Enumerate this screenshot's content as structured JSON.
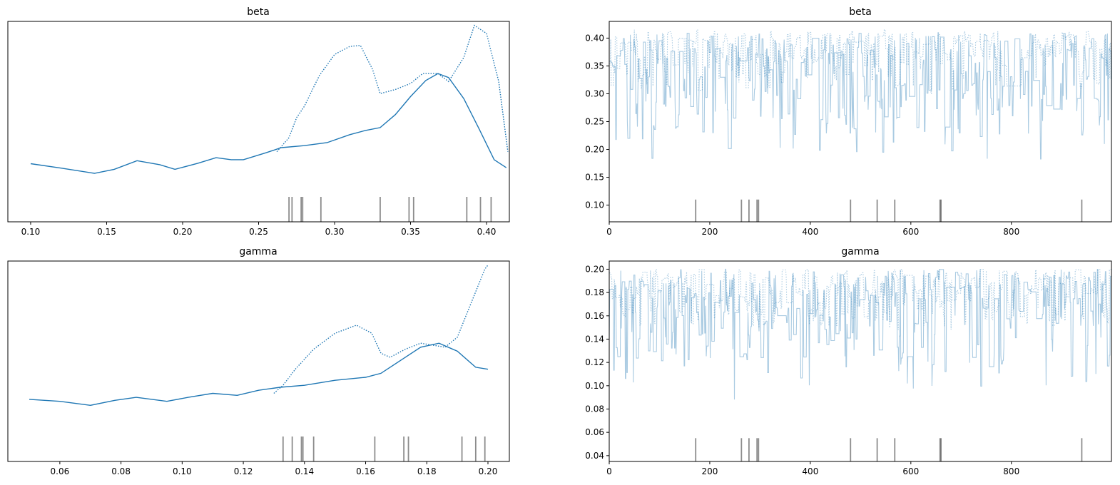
{
  "colors": {
    "series": "#1f77b4",
    "rug": "#000000",
    "axes": "#000000"
  },
  "chart_data": [
    {
      "type": "line",
      "title": "beta",
      "xlim": [
        0.085,
        0.415
      ],
      "ylim": [
        0,
        1.0
      ],
      "yticks_shown": false,
      "xticks": [
        0.1,
        0.15,
        0.2,
        0.25,
        0.3,
        0.35,
        0.4
      ],
      "xtick_labels": [
        "0.10",
        "0.15",
        "0.20",
        "0.25",
        "0.30",
        "0.35",
        "0.40"
      ],
      "series": [
        {
          "style": "solid",
          "x": [
            0.1,
            0.12,
            0.142,
            0.155,
            0.17,
            0.185,
            0.195,
            0.21,
            0.222,
            0.232,
            0.24,
            0.255,
            0.265,
            0.28,
            0.295,
            0.31,
            0.32,
            0.33,
            0.34,
            0.35,
            0.36,
            0.368,
            0.375,
            0.385,
            0.395,
            0.405,
            0.413
          ],
          "y": [
            0.29,
            0.268,
            0.242,
            0.262,
            0.305,
            0.285,
            0.262,
            0.292,
            0.32,
            0.31,
            0.31,
            0.345,
            0.37,
            0.38,
            0.395,
            0.435,
            0.455,
            0.47,
            0.535,
            0.625,
            0.705,
            0.74,
            0.72,
            0.615,
            0.465,
            0.31,
            0.27
          ]
        },
        {
          "style": "dotted",
          "x": [
            0.262,
            0.27,
            0.275,
            0.28,
            0.29,
            0.3,
            0.31,
            0.317,
            0.325,
            0.33,
            0.34,
            0.35,
            0.358,
            0.368,
            0.375,
            0.385,
            0.392,
            0.4,
            0.408,
            0.414
          ],
          "y": [
            0.35,
            0.42,
            0.52,
            0.575,
            0.73,
            0.835,
            0.875,
            0.88,
            0.76,
            0.64,
            0.66,
            0.69,
            0.74,
            0.74,
            0.7,
            0.82,
            0.98,
            0.94,
            0.7,
            0.35
          ]
        }
      ],
      "rug": [
        0.27,
        0.272,
        0.278,
        0.279,
        0.291,
        0.33,
        0.349,
        0.352,
        0.387,
        0.396,
        0.403
      ]
    },
    {
      "type": "line",
      "title": "beta",
      "xlim": [
        0,
        999
      ],
      "ylim": [
        0.07,
        0.43
      ],
      "xticks": [
        0,
        200,
        400,
        600,
        800
      ],
      "xtick_labels": [
        "0",
        "200",
        "400",
        "600",
        "800"
      ],
      "yticks": [
        0.1,
        0.15,
        0.2,
        0.25,
        0.3,
        0.35,
        0.4
      ],
      "ytick_labels": [
        "0.10",
        "0.15",
        "0.20",
        "0.25",
        "0.30",
        "0.35",
        "0.40"
      ],
      "series": [
        {
          "style": "solid",
          "n": 1000,
          "range": [
            0.1,
            0.41
          ]
        },
        {
          "style": "dotted",
          "n": 1000,
          "range": [
            0.26,
            0.415
          ]
        }
      ],
      "rug": [
        172,
        263,
        278,
        294,
        297,
        480,
        533,
        568,
        658,
        660,
        940
      ],
      "rug_level": 0.11
    },
    {
      "type": "line",
      "title": "gamma",
      "xlim": [
        0.043,
        0.207
      ],
      "ylim": [
        0,
        1.0
      ],
      "yticks_shown": false,
      "xticks": [
        0.06,
        0.08,
        0.1,
        0.12,
        0.14,
        0.16,
        0.18,
        0.2
      ],
      "xtick_labels": [
        "0.06",
        "0.08",
        "0.10",
        "0.12",
        "0.14",
        "0.16",
        "0.18",
        "0.20"
      ],
      "series": [
        {
          "style": "solid",
          "x": [
            0.05,
            0.06,
            0.07,
            0.078,
            0.085,
            0.095,
            0.102,
            0.11,
            0.118,
            0.125,
            0.132,
            0.14,
            0.15,
            0.16,
            0.165,
            0.172,
            0.178,
            0.184,
            0.19,
            0.196,
            0.2
          ],
          "y": [
            0.31,
            0.3,
            0.28,
            0.305,
            0.32,
            0.3,
            0.32,
            0.34,
            0.33,
            0.355,
            0.37,
            0.38,
            0.405,
            0.42,
            0.44,
            0.51,
            0.57,
            0.59,
            0.55,
            0.47,
            0.46
          ]
        },
        {
          "style": "dotted",
          "x": [
            0.13,
            0.133,
            0.137,
            0.143,
            0.15,
            0.157,
            0.162,
            0.165,
            0.168,
            0.173,
            0.178,
            0.182,
            0.186,
            0.19,
            0.195,
            0.199,
            0.2
          ],
          "y": [
            0.34,
            0.38,
            0.46,
            0.56,
            0.64,
            0.68,
            0.64,
            0.54,
            0.52,
            0.56,
            0.59,
            0.58,
            0.57,
            0.62,
            0.81,
            0.96,
            0.98
          ]
        }
      ],
      "rug": [
        0.133,
        0.136,
        0.139,
        0.1395,
        0.143,
        0.163,
        0.1725,
        0.174,
        0.1915,
        0.196,
        0.199
      ]
    },
    {
      "type": "line",
      "title": "gamma",
      "xlim": [
        0,
        999
      ],
      "ylim": [
        0.035,
        0.207
      ],
      "xticks": [
        0,
        200,
        400,
        600,
        800
      ],
      "xtick_labels": [
        "0",
        "200",
        "400",
        "600",
        "800"
      ],
      "yticks": [
        0.04,
        0.06,
        0.08,
        0.1,
        0.12,
        0.14,
        0.16,
        0.18,
        0.2
      ],
      "ytick_labels": [
        "0.04",
        "0.06",
        "0.08",
        "0.10",
        "0.12",
        "0.14",
        "0.16",
        "0.18",
        "0.20"
      ],
      "series": [
        {
          "style": "solid",
          "n": 1000,
          "range": [
            0.05,
            0.2
          ]
        },
        {
          "style": "dotted",
          "n": 1000,
          "range": [
            0.13,
            0.2
          ]
        }
      ],
      "rug": [
        172,
        263,
        278,
        294,
        297,
        480,
        533,
        568,
        658,
        660,
        940
      ],
      "rug_level": 0.055
    }
  ]
}
